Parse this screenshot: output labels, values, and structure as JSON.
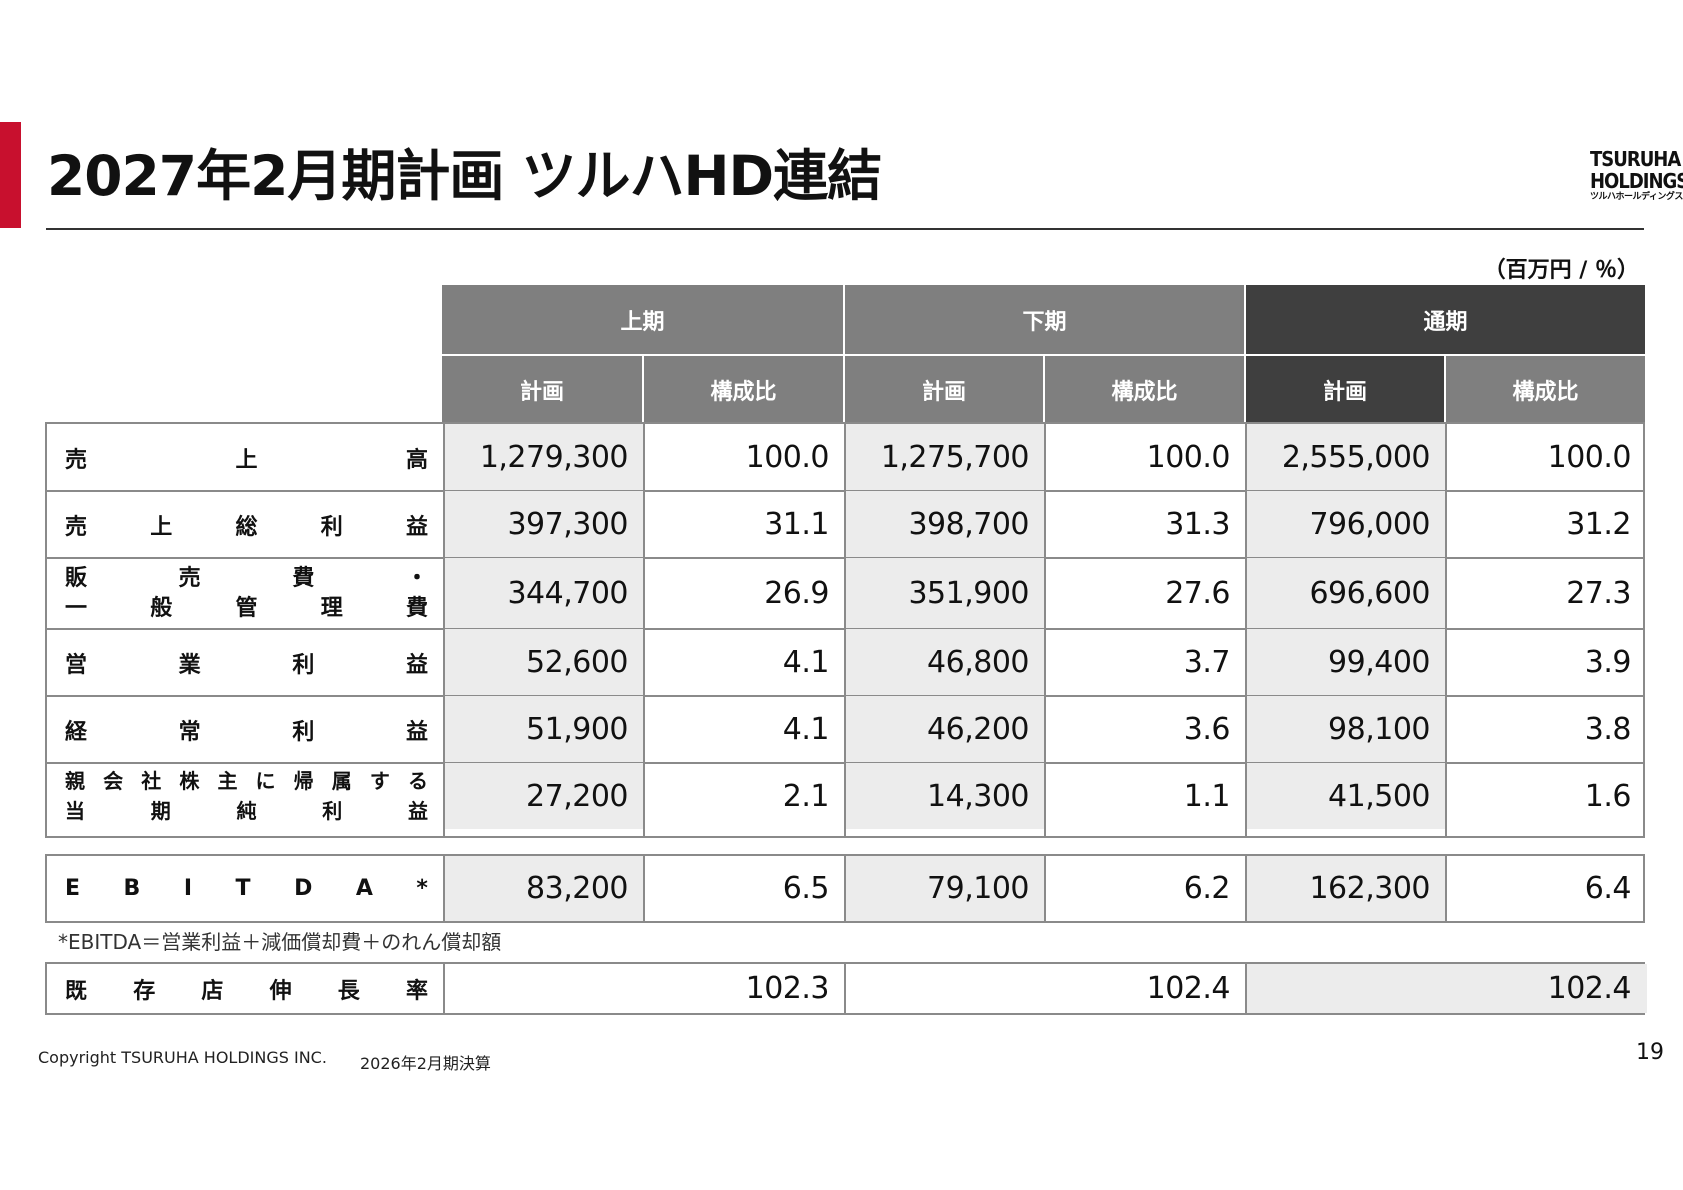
{
  "page": {
    "title": "2027年2月期計画 ツルハHD連結",
    "unit": "（百万円 / ％）",
    "logo": {
      "line1": "TSURUHA",
      "line2": "HOLDINGS",
      "line3": "ツルハホールディングス"
    },
    "note": "*EBITDA＝営業利益＋減価償却費＋のれん償却額",
    "copyright": "Copyright  TSURUHA HOLDINGS INC.",
    "period": "2026年2月期決算",
    "page_number": "19",
    "accent_color": "#c8102e"
  },
  "table": {
    "groups": [
      "上期",
      "下期",
      "通期"
    ],
    "subheaders": [
      "計画",
      "構成比",
      "計画",
      "構成比",
      "計画",
      "構成比"
    ],
    "rows": [
      {
        "label_lines": [
          [
            "売",
            "上",
            "高"
          ]
        ],
        "values": [
          "1,279,300",
          "100.0",
          "1,275,700",
          "100.0",
          "2,555,000",
          "100.0"
        ]
      },
      {
        "label_lines": [
          [
            "売",
            "上",
            "総",
            "利",
            "益"
          ]
        ],
        "values": [
          "397,300",
          "31.1",
          "398,700",
          "31.3",
          "796,000",
          "31.2"
        ]
      },
      {
        "label_lines": [
          [
            "販",
            "売",
            "費",
            "・"
          ],
          [
            "一",
            "般",
            "管",
            "理",
            "費"
          ]
        ],
        "values": [
          "344,700",
          "26.9",
          "351,900",
          "27.6",
          "696,600",
          "27.3"
        ]
      },
      {
        "label_lines": [
          [
            "営",
            "業",
            "利",
            "益"
          ]
        ],
        "values": [
          "52,600",
          "4.1",
          "46,800",
          "3.7",
          "99,400",
          "3.9"
        ]
      },
      {
        "label_lines": [
          [
            "経",
            "常",
            "利",
            "益"
          ]
        ],
        "values": [
          "51,900",
          "4.1",
          "46,200",
          "3.6",
          "98,100",
          "3.8"
        ]
      },
      {
        "label_lines": [
          [
            "親",
            "会",
            "社",
            "株",
            "主",
            "に",
            "帰",
            "属",
            "す",
            "る"
          ],
          [
            "当",
            "期",
            "純",
            "利",
            "益"
          ]
        ],
        "values": [
          "27,200",
          "2.1",
          "14,300",
          "1.1",
          "41,500",
          "1.6"
        ]
      }
    ],
    "ebitda": {
      "label_lines": [
        [
          "E",
          "B",
          "I",
          "T",
          "D",
          "A",
          "*"
        ]
      ],
      "values": [
        "83,200",
        "6.5",
        "79,100",
        "6.2",
        "162,300",
        "6.4"
      ]
    },
    "same_store": {
      "label_lines": [
        [
          "既",
          "存",
          "店",
          "伸",
          "長",
          "率"
        ]
      ],
      "values": [
        "102.3",
        "102.4",
        "102.4"
      ]
    }
  }
}
